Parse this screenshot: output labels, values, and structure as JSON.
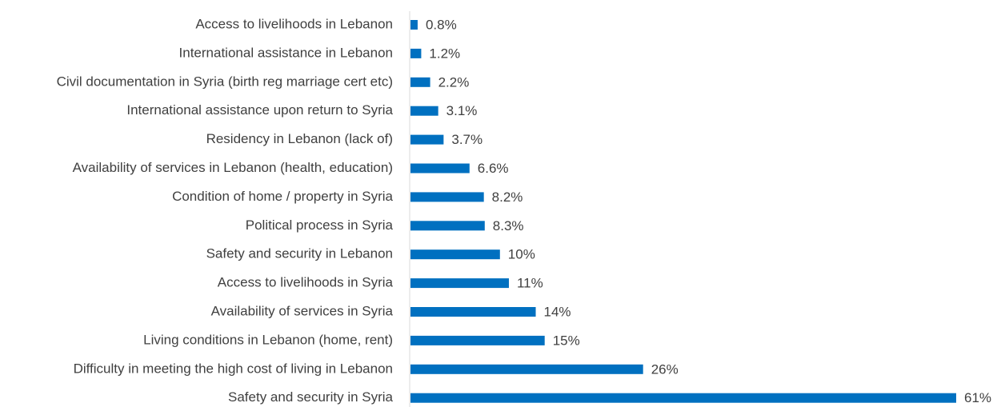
{
  "chart_data": {
    "type": "bar",
    "orientation": "horizontal",
    "color": "#0070c0",
    "categories": [
      "Access to livelihoods in Lebanon",
      "International assistance in Lebanon",
      "Civil documentation in Syria (birth reg marriage cert etc)",
      "International assistance upon return to Syria",
      "Residency in Lebanon (lack of)",
      "Availability of services in Lebanon (health, education)",
      "Condition of home / property in Syria",
      "Political process in Syria",
      "Safety and security in Lebanon",
      "Access to livelihoods in Syria",
      "Availability of services in Syria",
      "Living conditions in Lebanon (home, rent)",
      "Difficulty in meeting the high cost of living in Lebanon",
      "Safety and security in Syria"
    ],
    "values": [
      0.8,
      1.2,
      2.2,
      3.1,
      3.7,
      6.6,
      8.2,
      8.3,
      10,
      11,
      14,
      15,
      26,
      61
    ],
    "value_labels": [
      "0.8%",
      "1.2%",
      "2.2%",
      "3.1%",
      "3.7%",
      "6.6%",
      "8.2%",
      "8.3%",
      "10%",
      "11%",
      "14%",
      "15%",
      "26%",
      "61%"
    ]
  }
}
